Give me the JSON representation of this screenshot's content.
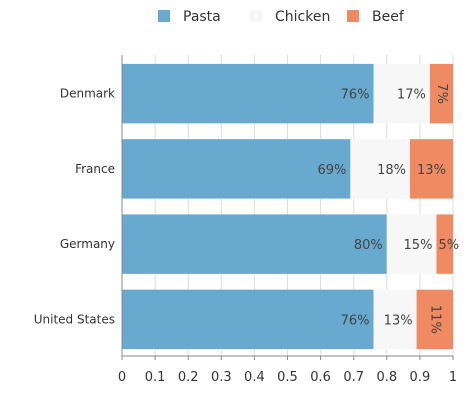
{
  "chart_data": {
    "type": "bar",
    "orientation": "horizontal",
    "stacked": true,
    "categories": [
      "Denmark",
      "France",
      "Germany",
      "United States"
    ],
    "series": [
      {
        "name": "Pasta",
        "color": "#67a9cf",
        "values": [
          0.76,
          0.69,
          0.8,
          0.76
        ],
        "labels": [
          "76%",
          "69%",
          "80%",
          "76%"
        ]
      },
      {
        "name": "Chicken",
        "color": "#f7f7f7",
        "values": [
          0.17,
          0.18,
          0.15,
          0.13
        ],
        "labels": [
          "17%",
          "18%",
          "15%",
          "13%"
        ]
      },
      {
        "name": "Beef",
        "color": "#ef8a62",
        "values": [
          0.07,
          0.13,
          0.05,
          0.11
        ],
        "labels": [
          "7%",
          "13%",
          "5%",
          "11%"
        ]
      }
    ],
    "xlim": [
      0,
      1
    ],
    "xticks": [
      "0",
      "0.1",
      "0.2",
      "0.3",
      "0.4",
      "0.5",
      "0.6",
      "0.7",
      "0.8",
      "0.9",
      "1"
    ],
    "grid": true,
    "legend_position": "top"
  }
}
